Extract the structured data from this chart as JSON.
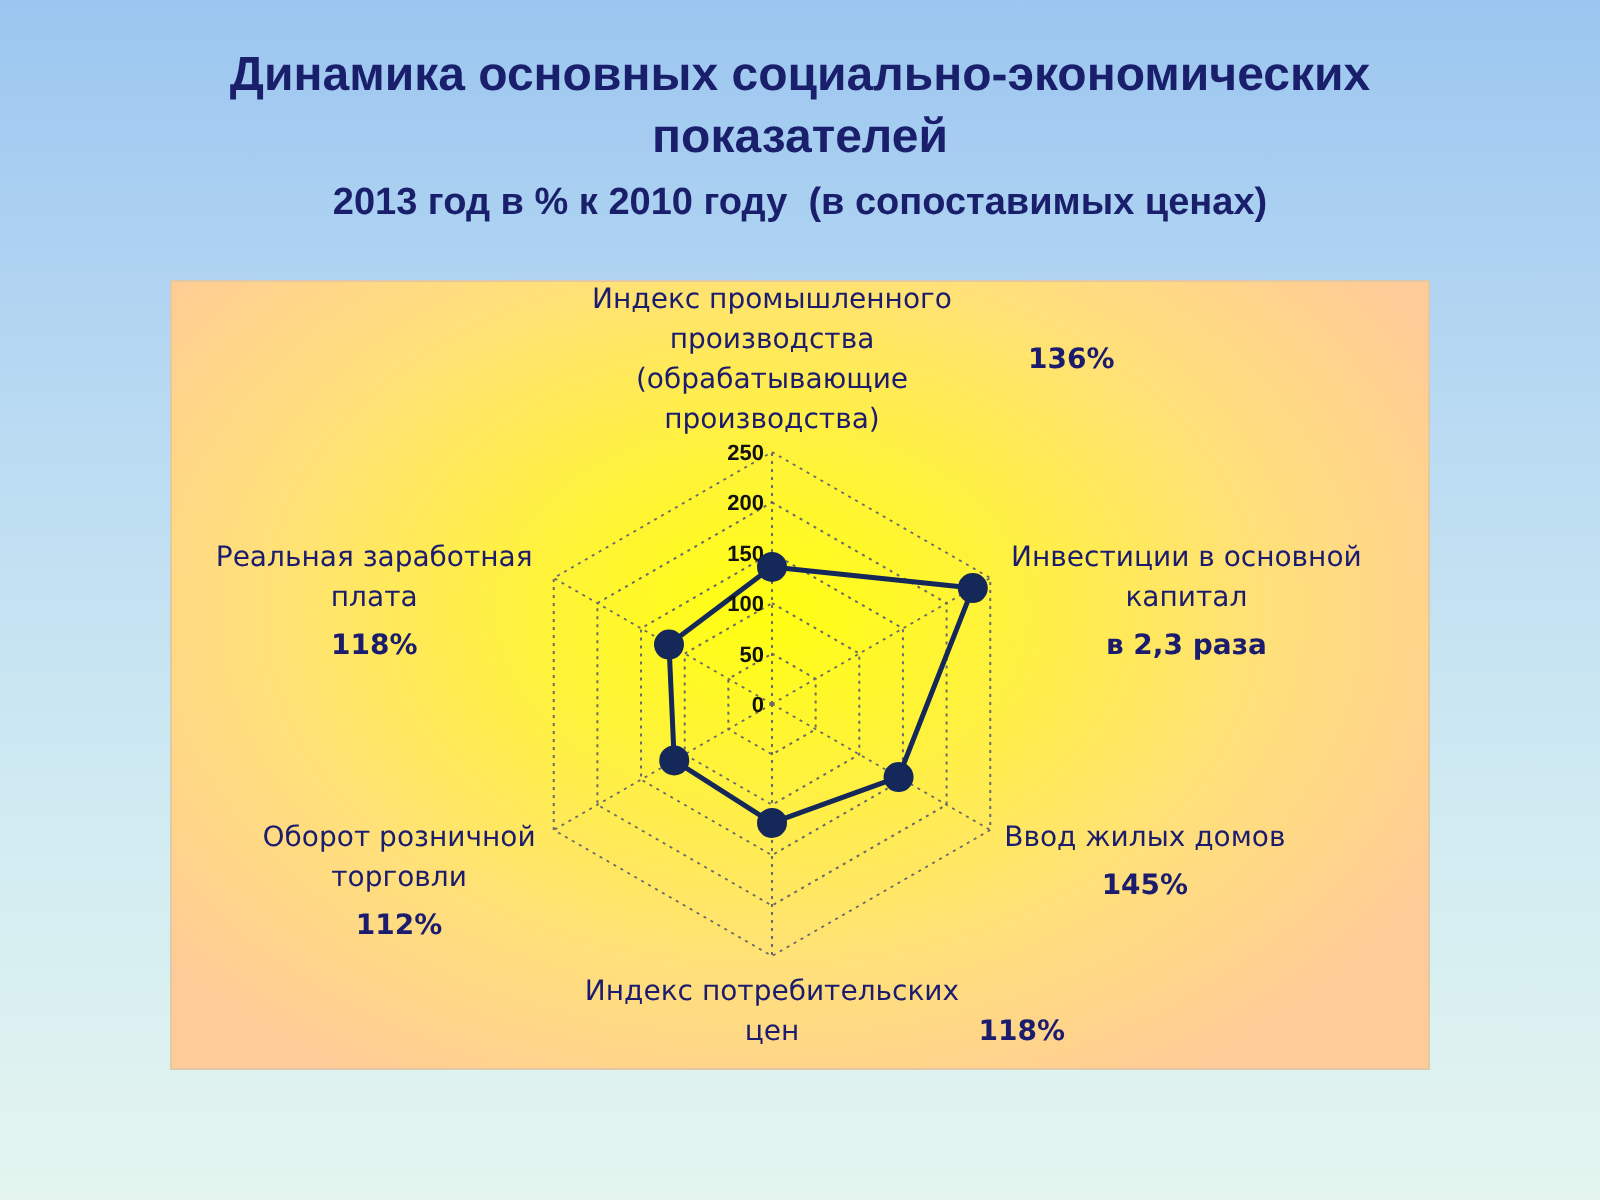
{
  "chart_data": {
    "type": "radar",
    "title": "Динамика основных социально-экономических показателей",
    "subtitle": "2013 год в % к 2010 году  (в сопоставимых ценах)",
    "categories": [
      "Индекс промышленного производства (обрабатывающие производства)",
      "Инвестиции в основной капитал",
      "Ввод жилых домов",
      "Индекс потребительских цен",
      "Оборот розничной торговли",
      "Реальная заработная плата"
    ],
    "series": [
      {
        "color": "#14285a",
        "values": [
          136,
          230,
          145,
          118,
          112,
          118
        ]
      }
    ],
    "annotations": [
      "136%",
      "в 2,3 раза",
      "145%",
      "118%",
      "112%",
      "118%"
    ],
    "ylim": [
      0,
      250
    ],
    "yticks": [
      0,
      50,
      100,
      150,
      200,
      250
    ],
    "grid": true,
    "marker": "circle"
  }
}
